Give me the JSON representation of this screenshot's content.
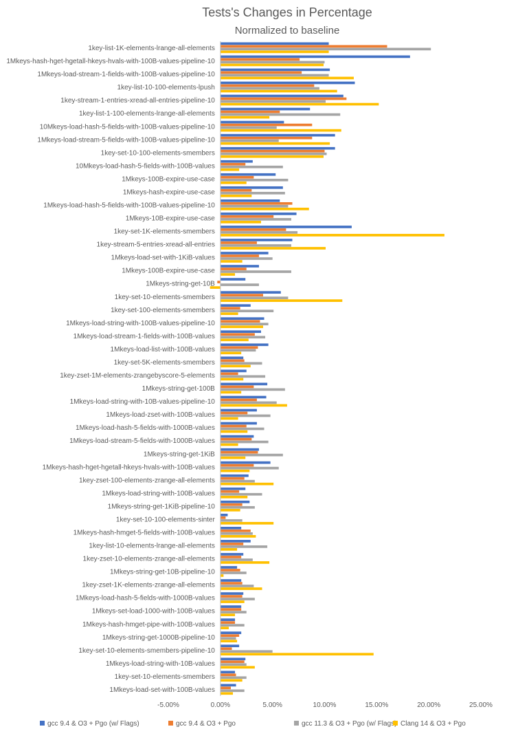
{
  "chart_data": {
    "type": "bar",
    "orientation": "horizontal",
    "title": "Tests's Changes in Percentage",
    "subtitle": "Normalized to baseline",
    "xlabel": "",
    "ylabel": "",
    "xlim": [
      -5,
      25
    ],
    "x_ticks": [
      -5,
      0,
      5,
      10,
      15,
      20,
      25
    ],
    "x_tick_labels": [
      "-5.00%",
      "0.00%",
      "5.00%",
      "10.00%",
      "15.00%",
      "20.00%",
      "25.00%"
    ],
    "grid": false,
    "legend_position": "bottom",
    "categories": [
      "1key-list-1K-elements-lrange-all-elements",
      "1Mkeys-hash-hget-hgetall-hkeys-hvals-with-100B-values-pipeline-10",
      "1Mkeys-load-stream-1-fields-with-100B-values-pipeline-10",
      "1key-list-10-100-elements-lpush",
      "1key-stream-1-entries-xread-all-entries-pipeline-10",
      "1key-list-1-100-elements-lrange-all-elements",
      "10Mkeys-load-hash-5-fields-with-100B-values-pipeline-10",
      "1Mkeys-load-stream-5-fields-with-100B-values-pipeline-10",
      "1key-set-10-100-elements-smembers",
      "10Mkeys-load-hash-5-fields-with-100B-values",
      "1Mkeys-100B-expire-use-case",
      "1Mkeys-hash-expire-use-case",
      "1Mkeys-load-hash-5-fields-with-100B-values-pipeline-10",
      "1Mkeys-10B-expire-use-case",
      "1key-set-1K-elements-smembers",
      "1key-stream-5-entries-xread-all-entries",
      "1Mkeys-load-set-with-1KiB-values",
      "1Mkeys-100B-expire-use-case",
      "1Mkeys-string-get-10B",
      "1key-set-10-elements-smembers",
      "1key-set-100-elements-smembers",
      "1Mkeys-load-string-with-100B-values-pipeline-10",
      "1Mkeys-load-stream-1-fields-with-100B-values",
      "1Mkeys-load-list-with-100B-values",
      "1key-set-5K-elements-smembers",
      "1key-zset-1M-elements-zrangebyscore-5-elements",
      "1Mkeys-string-get-100B",
      "1Mkeys-load-string-with-10B-values-pipeline-10",
      "1Mkeys-load-zset-with-100B-values",
      "1Mkeys-load-hash-5-fields-with-1000B-values",
      "1Mkeys-load-stream-5-fields-with-1000B-values",
      "1Mkeys-string-get-1KiB",
      "1Mkeys-hash-hget-hgetall-hkeys-hvals-with-100B-values",
      "1key-zset-100-elements-zrange-all-elements",
      "1Mkeys-load-string-with-100B-values",
      "1Mkeys-string-get-1KiB-pipeline-10",
      "1key-set-10-100-elements-sinter",
      "1Mkeys-hash-hmget-5-fields-with-100B-values",
      "1key-list-10-elements-lrange-all-elements",
      "1key-zset-10-elements-zrange-all-elements",
      "1Mkeys-string-get-10B-pipeline-10",
      "1key-zset-1K-elements-zrange-all-elements",
      "1Mkeys-load-hash-5-fields-with-1000B-values",
      "1Mkeys-set-load-1000-with-100B-values",
      "1Mkeys-hash-hmget-pipe-with-100B-values",
      "1Mkeys-string-get-1000B-pipeline-10",
      "1key-set-10-elements-smembers-pipeline-10",
      "1Mkeys-load-string-with-10B-values",
      "1key-set-10-elements-smembers",
      "1Mkeys-load-set-with-100B-values"
    ],
    "series": [
      {
        "name": "gcc 9.4 & O3 + Pgo (w/ Flags)",
        "color": "#4472C4",
        "values": [
          10.4,
          18.2,
          10.5,
          12.9,
          11.8,
          8.6,
          6.1,
          11.0,
          11.0,
          3.1,
          5.3,
          6.0,
          5.7,
          7.3,
          12.6,
          6.9,
          4.6,
          3.7,
          2.4,
          5.8,
          2.9,
          4.2,
          3.9,
          4.6,
          2.2,
          2.5,
          4.5,
          4.4,
          3.5,
          3.5,
          3.2,
          3.7,
          4.8,
          2.7,
          2.4,
          2.8,
          0.7,
          2.0,
          2.9,
          2.2,
          1.6,
          2.0,
          2.2,
          2.0,
          1.4,
          2.0,
          1.8,
          2.4,
          1.4,
          1.5
        ]
      },
      {
        "name": "gcc 9.4 & O3 + Pgo",
        "color": "#ED7D31",
        "values": [
          16.0,
          7.6,
          7.8,
          9.0,
          12.1,
          5.7,
          8.8,
          8.8,
          10.0,
          2.4,
          3.2,
          3.0,
          6.9,
          5.1,
          6.3,
          3.5,
          3.7,
          2.5,
          -0.3,
          4.1,
          1.9,
          3.8,
          3.3,
          3.6,
          2.3,
          1.7,
          3.2,
          3.5,
          2.6,
          2.5,
          3.0,
          3.6,
          3.2,
          2.3,
          1.8,
          2.1,
          0.5,
          2.9,
          2.2,
          2.0,
          1.9,
          2.1,
          2.1,
          2.0,
          1.4,
          1.8,
          1.1,
          2.3,
          1.5,
          1.0
        ]
      },
      {
        "name": "gcc 11.3 & O3 + Pgo (w/ Flags)",
        "color": "#A5A5A5",
        "values": [
          20.2,
          10.0,
          10.4,
          9.5,
          10.1,
          11.5,
          5.4,
          5.6,
          10.2,
          6.0,
          6.5,
          6.2,
          6.5,
          6.8,
          7.4,
          6.8,
          5.0,
          6.8,
          3.7,
          6.5,
          5.1,
          4.6,
          4.3,
          3.4,
          4.0,
          4.3,
          6.2,
          5.4,
          4.8,
          4.2,
          4.6,
          6.0,
          5.6,
          3.3,
          4.0,
          3.3,
          2.1,
          3.1,
          4.5,
          3.1,
          2.5,
          3.2,
          3.3,
          2.5,
          2.3,
          1.5,
          5.0,
          2.5,
          2.5,
          2.3
        ]
      },
      {
        "name": "Clang 14 & O3 + Pgo",
        "color": "#FFC000",
        "values": [
          10.4,
          9.9,
          12.8,
          11.2,
          15.2,
          4.7,
          11.6,
          10.5,
          9.9,
          1.8,
          2.5,
          3.0,
          8.5,
          3.9,
          21.5,
          10.1,
          2.1,
          1.4,
          -1.0,
          11.7,
          1.7,
          4.1,
          2.7,
          2.0,
          2.9,
          2.2,
          2.0,
          6.4,
          1.7,
          2.6,
          1.7,
          2.4,
          2.8,
          5.1,
          2.6,
          1.9,
          5.1,
          3.4,
          1.6,
          4.7,
          0.3,
          4.0,
          2.3,
          1.4,
          0.8,
          1.6,
          14.7,
          3.3,
          2.1,
          1.2
        ]
      }
    ]
  }
}
